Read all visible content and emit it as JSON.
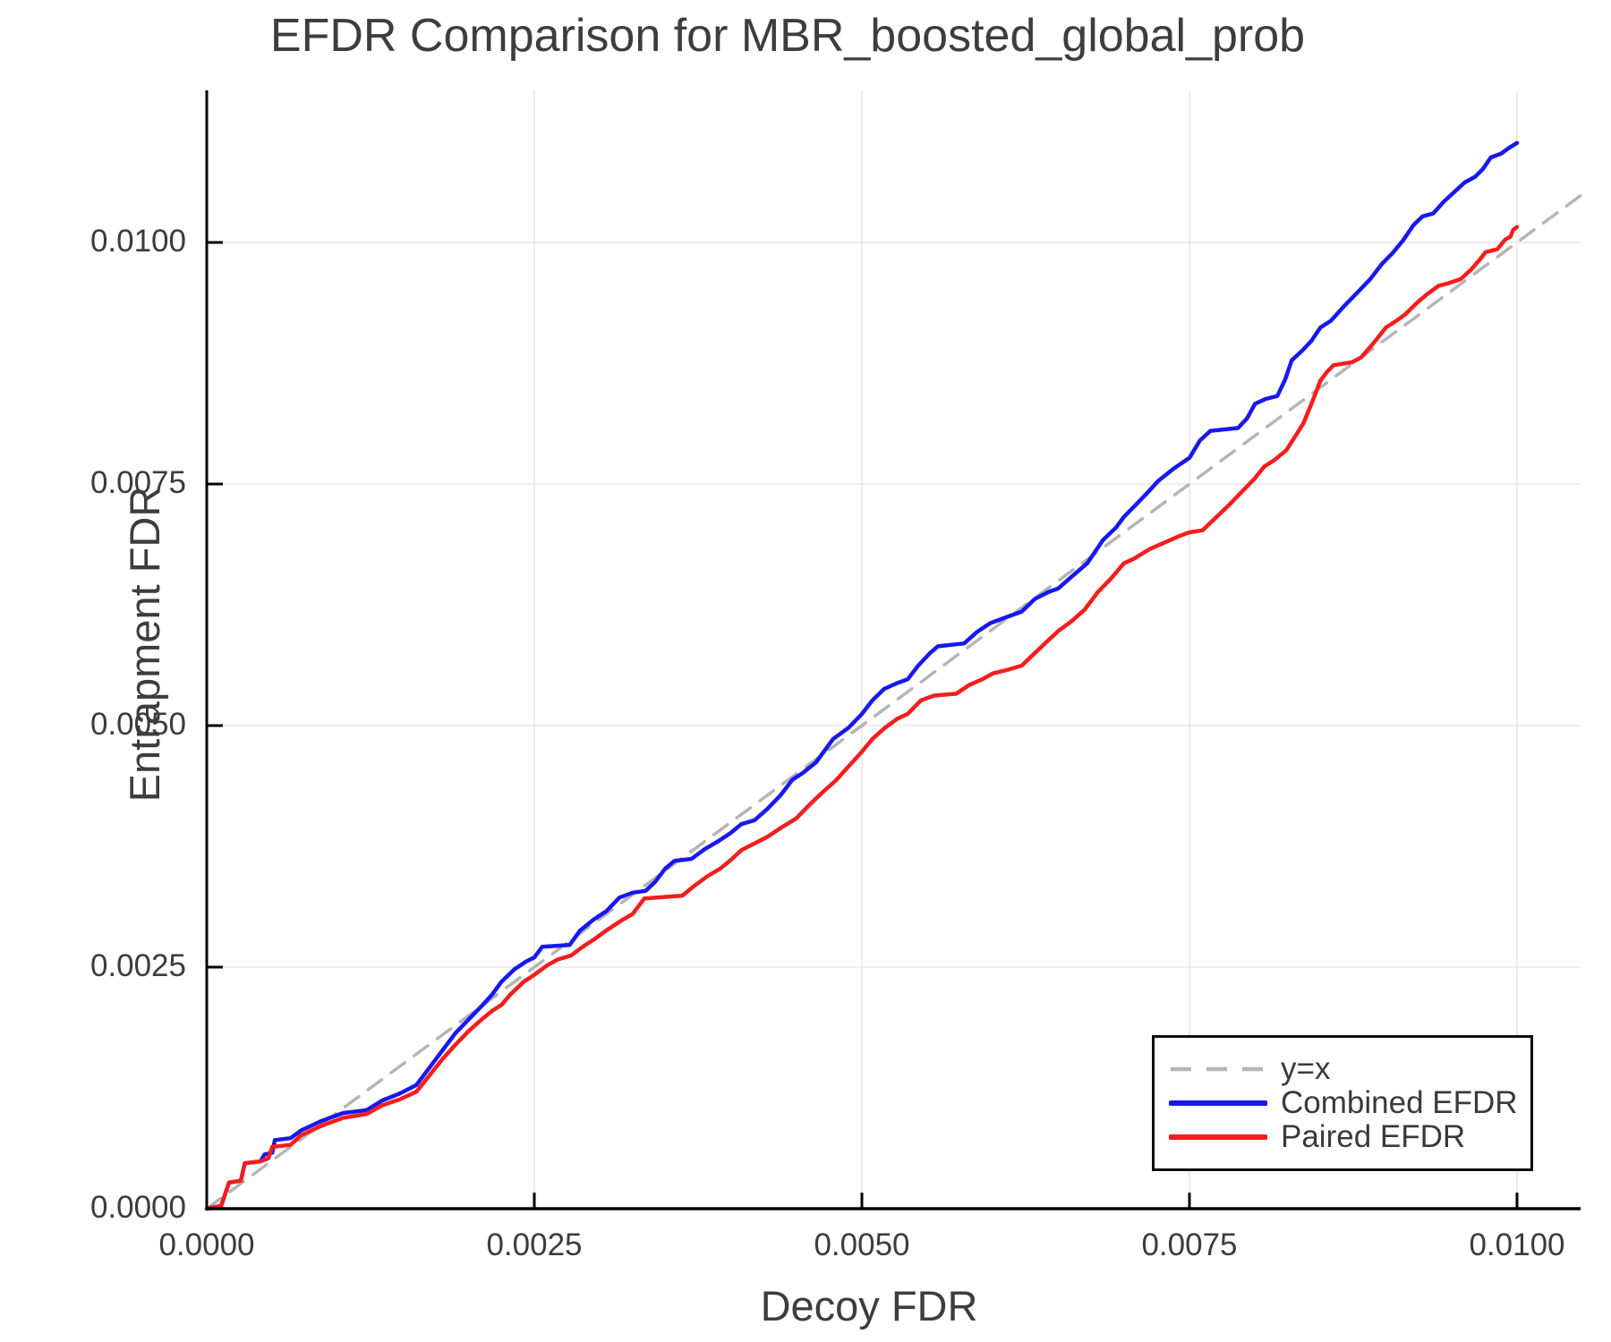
{
  "title": "EFDR Comparison for MBR_boosted_global_prob",
  "colors": {
    "combined": "#1818ee",
    "paired": "#f51d1d",
    "identity": "#b5b5b5",
    "grid": "#e8e8e8",
    "axis": "#000000",
    "text": "#3c3c3c"
  },
  "legend": {
    "entries": [
      {
        "label": "y=x"
      },
      {
        "label": "Combined EFDR"
      },
      {
        "label": "Paired EFDR"
      }
    ]
  },
  "chart_data": {
    "type": "line",
    "title": "EFDR Comparison for MBR_boosted_global_prob",
    "xlabel": "Decoy FDR",
    "ylabel": "Entrapment FDR",
    "xlim": [
      0,
      0.010485
    ],
    "ylim": [
      0,
      0.011574
    ],
    "grid": true,
    "legend_position": "bottom-right",
    "x_ticks": [
      0,
      0.0025,
      0.005,
      0.0075,
      0.01
    ],
    "x_tick_labels": [
      "0.0000",
      "0.0025",
      "0.0050",
      "0.0075",
      "0.0100"
    ],
    "y_ticks": [
      0,
      0.0025,
      0.005,
      0.0075,
      0.01
    ],
    "y_tick_labels": [
      "0.0000",
      "0.0025",
      "0.0050",
      "0.0075",
      "0.0100"
    ],
    "series": [
      {
        "name": "y=x",
        "style": "dashed",
        "color": "#b5b5b5",
        "width": 3.5,
        "points": [
          [
            0,
            0
          ],
          [
            0.010485,
            0.010485
          ]
        ]
      },
      {
        "name": "Combined EFDR",
        "style": "solid",
        "color": "#1818ee",
        "width": 4.5,
        "points": [
          [
            0.0,
            0.0
          ],
          [
            0.00011,
            3e-05
          ],
          [
            0.00017,
            0.00027
          ],
          [
            0.00026,
            0.00029
          ],
          [
            0.00029,
            0.00047
          ],
          [
            0.00041,
            0.00049
          ],
          [
            0.00044,
            0.00056
          ],
          [
            0.0005,
            0.00058
          ],
          [
            0.00052,
            0.00071
          ],
          [
            0.00064,
            0.00073
          ],
          [
            0.00072,
            0.00081
          ],
          [
            0.00088,
            0.00091
          ],
          [
            0.00104,
            0.00099
          ],
          [
            0.00122,
            0.00102
          ],
          [
            0.00134,
            0.00112
          ],
          [
            0.00147,
            0.00119
          ],
          [
            0.0016,
            0.00128
          ],
          [
            0.0017,
            0.00146
          ],
          [
            0.0018,
            0.00164
          ],
          [
            0.0019,
            0.00182
          ],
          [
            0.002,
            0.00196
          ],
          [
            0.0021,
            0.0021
          ],
          [
            0.00218,
            0.00222
          ],
          [
            0.00225,
            0.00235
          ],
          [
            0.00235,
            0.00248
          ],
          [
            0.00244,
            0.00256
          ],
          [
            0.0025,
            0.0026
          ],
          [
            0.00256,
            0.00271
          ],
          [
            0.00277,
            0.00273
          ],
          [
            0.00285,
            0.00288
          ],
          [
            0.00295,
            0.00299
          ],
          [
            0.00305,
            0.00308
          ],
          [
            0.00315,
            0.00322
          ],
          [
            0.00325,
            0.00327
          ],
          [
            0.00335,
            0.00329
          ],
          [
            0.00342,
            0.00338
          ],
          [
            0.0035,
            0.00352
          ],
          [
            0.00357,
            0.0036
          ],
          [
            0.0037,
            0.00362
          ],
          [
            0.0038,
            0.00372
          ],
          [
            0.0039,
            0.0038
          ],
          [
            0.004,
            0.00389
          ],
          [
            0.00408,
            0.00398
          ],
          [
            0.00418,
            0.00402
          ],
          [
            0.00428,
            0.00414
          ],
          [
            0.00438,
            0.00428
          ],
          [
            0.00447,
            0.00444
          ],
          [
            0.00455,
            0.00451
          ],
          [
            0.00465,
            0.00462
          ],
          [
            0.00478,
            0.00486
          ],
          [
            0.0049,
            0.00498
          ],
          [
            0.005,
            0.00512
          ],
          [
            0.00508,
            0.00526
          ],
          [
            0.00517,
            0.00538
          ],
          [
            0.00527,
            0.00544
          ],
          [
            0.00535,
            0.00548
          ],
          [
            0.00543,
            0.00562
          ],
          [
            0.00552,
            0.00575
          ],
          [
            0.00558,
            0.00582
          ],
          [
            0.00578,
            0.00585
          ],
          [
            0.00588,
            0.00597
          ],
          [
            0.00598,
            0.00606
          ],
          [
            0.0061,
            0.00612
          ],
          [
            0.00622,
            0.00618
          ],
          [
            0.00632,
            0.00631
          ],
          [
            0.00642,
            0.00638
          ],
          [
            0.0065,
            0.00642
          ],
          [
            0.0066,
            0.00654
          ],
          [
            0.00672,
            0.00668
          ],
          [
            0.00684,
            0.00692
          ],
          [
            0.00694,
            0.00705
          ],
          [
            0.007,
            0.00716
          ],
          [
            0.00708,
            0.00727
          ],
          [
            0.00718,
            0.00741
          ],
          [
            0.00726,
            0.00753
          ],
          [
            0.00738,
            0.00766
          ],
          [
            0.0075,
            0.00777
          ],
          [
            0.00758,
            0.00795
          ],
          [
            0.00766,
            0.00805
          ],
          [
            0.00787,
            0.00808
          ],
          [
            0.00794,
            0.00818
          ],
          [
            0.008,
            0.00833
          ],
          [
            0.00808,
            0.00838
          ],
          [
            0.00817,
            0.00841
          ],
          [
            0.00823,
            0.00858
          ],
          [
            0.00828,
            0.00878
          ],
          [
            0.00836,
            0.00888
          ],
          [
            0.00843,
            0.00898
          ],
          [
            0.0085,
            0.00912
          ],
          [
            0.00858,
            0.00919
          ],
          [
            0.00868,
            0.00934
          ],
          [
            0.00878,
            0.00948
          ],
          [
            0.00888,
            0.00962
          ],
          [
            0.00897,
            0.00978
          ],
          [
            0.00905,
            0.00989
          ],
          [
            0.00913,
            0.01002
          ],
          [
            0.00921,
            0.01018
          ],
          [
            0.00928,
            0.01027
          ],
          [
            0.00936,
            0.0103
          ],
          [
            0.00944,
            0.01042
          ],
          [
            0.00952,
            0.01052
          ],
          [
            0.0096,
            0.01062
          ],
          [
            0.00968,
            0.01068
          ],
          [
            0.00974,
            0.01076
          ],
          [
            0.0098,
            0.01088
          ],
          [
            0.00988,
            0.01092
          ],
          [
            0.00994,
            0.01098
          ],
          [
            0.01,
            0.01103
          ]
        ]
      },
      {
        "name": "Paired EFDR",
        "style": "solid",
        "color": "#f51d1d",
        "width": 4.5,
        "points": [
          [
            0.0,
            0.0
          ],
          [
            0.00011,
            3e-05
          ],
          [
            0.00017,
            0.00027
          ],
          [
            0.00026,
            0.00029
          ],
          [
            0.00029,
            0.00047
          ],
          [
            0.00041,
            0.00049
          ],
          [
            0.00047,
            0.00052
          ],
          [
            0.0005,
            0.00064
          ],
          [
            0.00064,
            0.00066
          ],
          [
            0.00072,
            0.00076
          ],
          [
            0.00088,
            0.00086
          ],
          [
            0.00104,
            0.00094
          ],
          [
            0.00122,
            0.00098
          ],
          [
            0.00134,
            0.00107
          ],
          [
            0.00147,
            0.00113
          ],
          [
            0.0016,
            0.00121
          ],
          [
            0.0017,
            0.00138
          ],
          [
            0.0018,
            0.00155
          ],
          [
            0.0019,
            0.0017
          ],
          [
            0.002,
            0.00184
          ],
          [
            0.0021,
            0.00196
          ],
          [
            0.00218,
            0.00205
          ],
          [
            0.00225,
            0.00211
          ],
          [
            0.00232,
            0.00222
          ],
          [
            0.00242,
            0.00235
          ],
          [
            0.0025,
            0.00242
          ],
          [
            0.0026,
            0.00252
          ],
          [
            0.00268,
            0.00258
          ],
          [
            0.00278,
            0.00262
          ],
          [
            0.00288,
            0.00272
          ],
          [
            0.00297,
            0.0028
          ],
          [
            0.00305,
            0.00288
          ],
          [
            0.00315,
            0.00297
          ],
          [
            0.00325,
            0.00305
          ],
          [
            0.00334,
            0.00321
          ],
          [
            0.00363,
            0.00324
          ],
          [
            0.00372,
            0.00334
          ],
          [
            0.00382,
            0.00344
          ],
          [
            0.00392,
            0.00352
          ],
          [
            0.004,
            0.00361
          ],
          [
            0.00408,
            0.00371
          ],
          [
            0.00418,
            0.00378
          ],
          [
            0.00428,
            0.00385
          ],
          [
            0.00438,
            0.00394
          ],
          [
            0.0045,
            0.00404
          ],
          [
            0.0046,
            0.00418
          ],
          [
            0.0047,
            0.00431
          ],
          [
            0.0048,
            0.00443
          ],
          [
            0.0049,
            0.00458
          ],
          [
            0.005,
            0.00473
          ],
          [
            0.00508,
            0.00486
          ],
          [
            0.00517,
            0.00497
          ],
          [
            0.00527,
            0.00507
          ],
          [
            0.00535,
            0.00512
          ],
          [
            0.00545,
            0.00526
          ],
          [
            0.00555,
            0.00531
          ],
          [
            0.00572,
            0.00533
          ],
          [
            0.00582,
            0.00542
          ],
          [
            0.00592,
            0.00548
          ],
          [
            0.006,
            0.00554
          ],
          [
            0.00612,
            0.00558
          ],
          [
            0.00622,
            0.00562
          ],
          [
            0.00632,
            0.00575
          ],
          [
            0.00642,
            0.00588
          ],
          [
            0.0065,
            0.00598
          ],
          [
            0.0066,
            0.00608
          ],
          [
            0.0067,
            0.0062
          ],
          [
            0.0068,
            0.00638
          ],
          [
            0.0069,
            0.00652
          ],
          [
            0.007,
            0.00668
          ],
          [
            0.00708,
            0.00673
          ],
          [
            0.0072,
            0.00683
          ],
          [
            0.00732,
            0.0069
          ],
          [
            0.00742,
            0.00696
          ],
          [
            0.0075,
            0.007
          ],
          [
            0.0076,
            0.00702
          ],
          [
            0.0077,
            0.00715
          ],
          [
            0.0078,
            0.00728
          ],
          [
            0.0079,
            0.00742
          ],
          [
            0.008,
            0.00756
          ],
          [
            0.00807,
            0.00768
          ],
          [
            0.00815,
            0.00775
          ],
          [
            0.00824,
            0.00785
          ],
          [
            0.00832,
            0.00802
          ],
          [
            0.00837,
            0.00813
          ],
          [
            0.00844,
            0.00836
          ],
          [
            0.0085,
            0.00857
          ],
          [
            0.00855,
            0.00866
          ],
          [
            0.0086,
            0.00873
          ],
          [
            0.00874,
            0.00876
          ],
          [
            0.00881,
            0.00881
          ],
          [
            0.0089,
            0.00895
          ],
          [
            0.009,
            0.00912
          ],
          [
            0.00908,
            0.00919
          ],
          [
            0.00915,
            0.00926
          ],
          [
            0.00924,
            0.00938
          ],
          [
            0.00931,
            0.00946
          ],
          [
            0.0094,
            0.00955
          ],
          [
            0.00948,
            0.00958
          ],
          [
            0.00957,
            0.00962
          ],
          [
            0.00965,
            0.00972
          ],
          [
            0.00972,
            0.00983
          ],
          [
            0.00976,
            0.0099
          ],
          [
            0.00985,
            0.00993
          ],
          [
            0.00991,
            0.01003
          ],
          [
            0.00995,
            0.01006
          ],
          [
            0.00997,
            0.01013
          ],
          [
            0.01,
            0.01016
          ]
        ]
      }
    ]
  }
}
